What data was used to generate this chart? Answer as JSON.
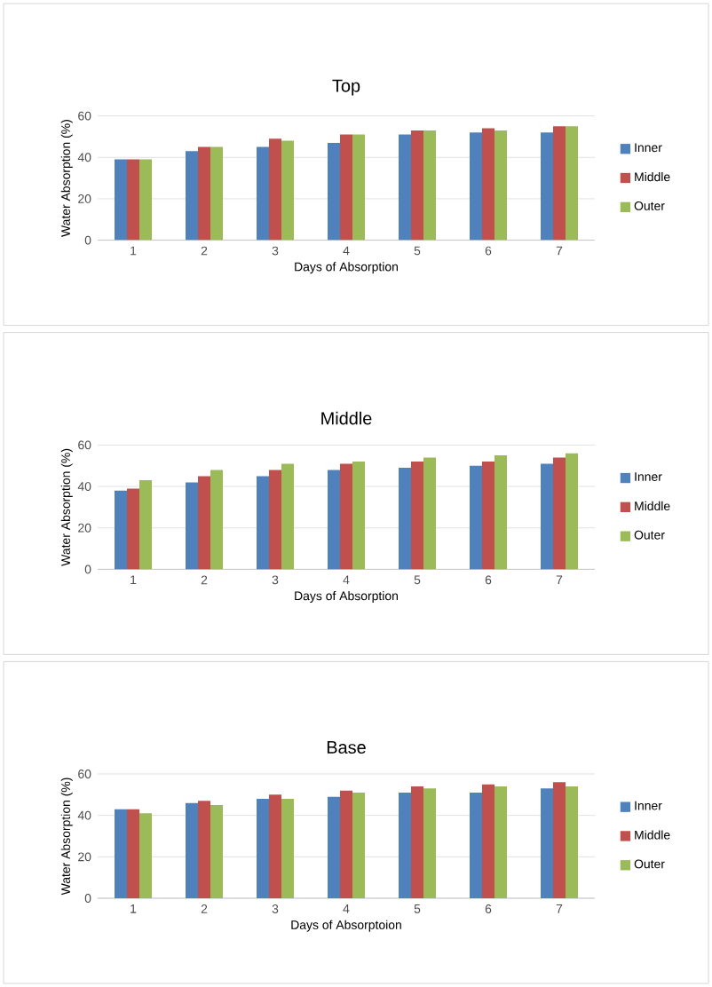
{
  "chart_data": [
    {
      "type": "bar",
      "title": "Top",
      "xlabel": "Days of Absorption",
      "ylabel": "Water Absorption (%)",
      "categories": [
        "1",
        "2",
        "3",
        "4",
        "5",
        "6",
        "7"
      ],
      "ylim": [
        0,
        60
      ],
      "yticks": [
        0,
        20,
        40,
        60
      ],
      "grid": "y",
      "legend": "right",
      "series": [
        {
          "name": "Inner",
          "color": "#4f81bd",
          "values": [
            39,
            43,
            45,
            47,
            51,
            52,
            52
          ]
        },
        {
          "name": "Middle",
          "color": "#c0504d",
          "values": [
            39,
            45,
            49,
            51,
            53,
            54,
            55
          ]
        },
        {
          "name": "Outer",
          "color": "#9bbb59",
          "values": [
            39,
            45,
            48,
            51,
            53,
            53,
            55
          ]
        }
      ]
    },
    {
      "type": "bar",
      "title": "Middle",
      "xlabel": "Days of Absorption",
      "ylabel": "Water Absorption (%)",
      "categories": [
        "1",
        "2",
        "3",
        "4",
        "5",
        "6",
        "7"
      ],
      "ylim": [
        0,
        60
      ],
      "yticks": [
        0,
        20,
        40,
        60
      ],
      "grid": "y",
      "legend": "right",
      "series": [
        {
          "name": "Inner",
          "color": "#4f81bd",
          "values": [
            38,
            42,
            45,
            48,
            49,
            50,
            51
          ]
        },
        {
          "name": "Middle",
          "color": "#c0504d",
          "values": [
            39,
            45,
            48,
            51,
            52,
            52,
            54
          ]
        },
        {
          "name": "Outer",
          "color": "#9bbb59",
          "values": [
            43,
            48,
            51,
            52,
            54,
            55,
            56
          ]
        }
      ]
    },
    {
      "type": "bar",
      "title": "Base",
      "xlabel": "Days of Absorptoion",
      "ylabel": "Water Absorption (%)",
      "categories": [
        "1",
        "2",
        "3",
        "4",
        "5",
        "6",
        "7"
      ],
      "ylim": [
        0,
        60
      ],
      "yticks": [
        0,
        20,
        40,
        60
      ],
      "grid": "y",
      "legend": "right",
      "series": [
        {
          "name": "Inner",
          "color": "#4f81bd",
          "values": [
            43,
            46,
            48,
            49,
            51,
            51,
            53
          ]
        },
        {
          "name": "Middle",
          "color": "#c0504d",
          "values": [
            43,
            47,
            50,
            52,
            54,
            55,
            56
          ]
        },
        {
          "name": "Outer",
          "color": "#9bbb59",
          "values": [
            41,
            45,
            48,
            51,
            53,
            54,
            54
          ]
        }
      ]
    }
  ]
}
